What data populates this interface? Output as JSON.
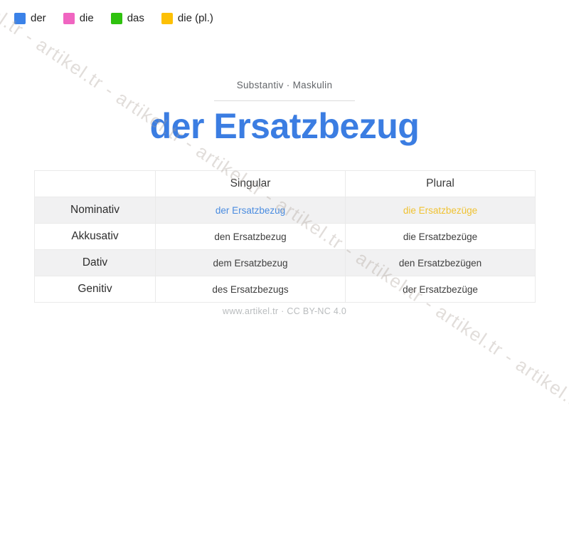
{
  "watermark": {
    "text": "artikel.tr - artikel.tr - artikel.tr - artikel.tr - artikel.tr - artikel.tr - artikel.tr - artikel.tr - artikel.tr - artikel.tr"
  },
  "legend": {
    "items": [
      {
        "label": "der",
        "color": "#3b82e8"
      },
      {
        "label": "die",
        "color": "#f065c1"
      },
      {
        "label": "das",
        "color": "#2fc20e"
      },
      {
        "label": "die (pl.)",
        "color": "#fdc005"
      }
    ]
  },
  "header": {
    "subtitle": "Substantiv · Maskulin",
    "title": "der Ersatzbezug",
    "title_color": "#3b7de2"
  },
  "table": {
    "headers": [
      "",
      "Singular",
      "Plural"
    ],
    "rows": [
      {
        "label": "Nominativ",
        "singular": "der Ersatzbezug",
        "plural": "die Ersatzbezüge"
      },
      {
        "label": "Akkusativ",
        "singular": "den Ersatzbezug",
        "plural": "die Ersatzbezüge"
      },
      {
        "label": "Dativ",
        "singular": "dem Ersatzbezug",
        "plural": "den Ersatzbezügen"
      },
      {
        "label": "Genitiv",
        "singular": "des Ersatzbezugs",
        "plural": "der Ersatzbezüge"
      }
    ],
    "highlight": {
      "singular_color": "#4a8ce0",
      "plural_color": "#f0c232"
    }
  },
  "footer": {
    "text": "www.artikel.tr · CC BY-NC 4.0"
  }
}
